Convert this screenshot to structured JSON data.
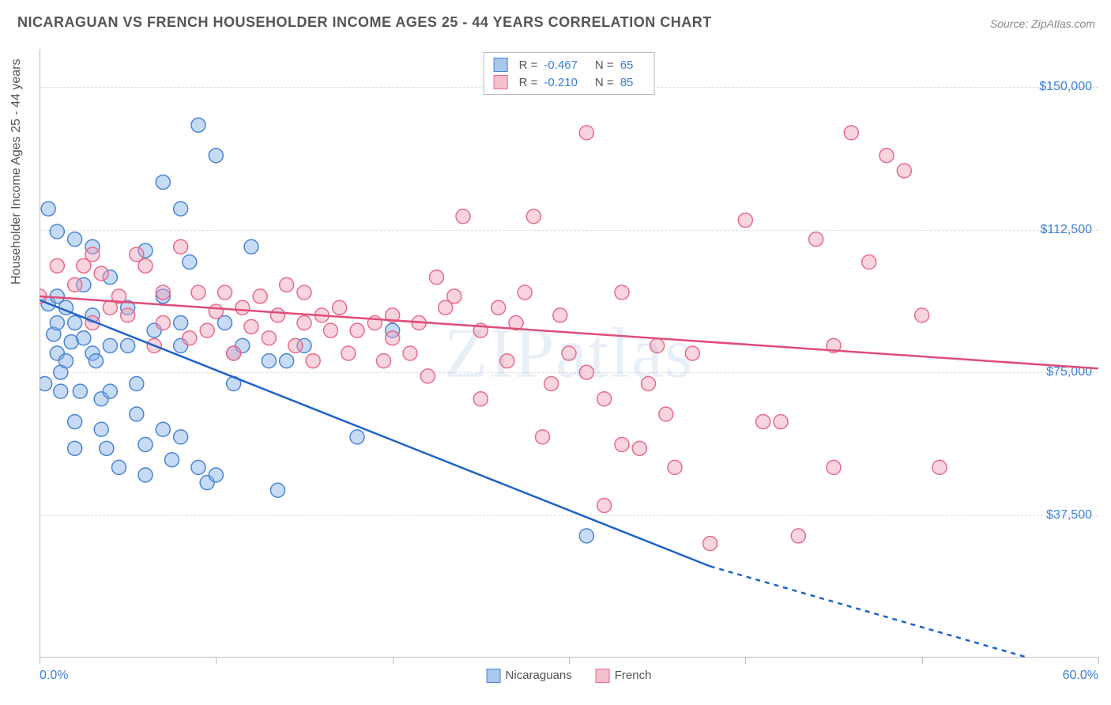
{
  "title": "NICARAGUAN VS FRENCH HOUSEHOLDER INCOME AGES 25 - 44 YEARS CORRELATION CHART",
  "source": "Source: ZipAtlas.com",
  "watermark": "ZIPatlas",
  "ylabel": "Householder Income Ages 25 - 44 years",
  "chart": {
    "type": "scatter",
    "plot_bg": "#ffffff",
    "grid_color": "#dddddd",
    "border_color": "#bbbbbb",
    "text_color": "#555555",
    "accent_color": "#3b7dd8",
    "xlim": [
      0,
      60
    ],
    "ylim": [
      0,
      160000
    ],
    "ytick_labels": [
      "$37,500",
      "$75,000",
      "$112,500",
      "$150,000"
    ],
    "ytick_values": [
      37500,
      75000,
      112500,
      150000
    ],
    "xtick_values": [
      0,
      10,
      20,
      30,
      40,
      50,
      60
    ],
    "xlabel_min": "0.0%",
    "xlabel_max": "60.0%",
    "marker_radius": 9,
    "marker_stroke_width": 1.5,
    "trend_width": 2.5
  },
  "legend_top": {
    "series": [
      {
        "swatch_fill": "#a8c8ec",
        "swatch_stroke": "#4a84d6",
        "R": "-0.467",
        "N": "65"
      },
      {
        "swatch_fill": "#f5c0cc",
        "swatch_stroke": "#e86a8a",
        "R": "-0.210",
        "N": "85"
      }
    ]
  },
  "legend_bottom": [
    {
      "label": "Nicaraguans",
      "fill": "#a8c8ec",
      "stroke": "#4a84d6"
    },
    {
      "label": "French",
      "fill": "#f5c0cc",
      "stroke": "#e86a8a"
    }
  ],
  "series": [
    {
      "name": "Nicaraguans",
      "color_fill": "rgba(130,175,230,0.45)",
      "color_stroke": "#4a84d6",
      "trend_color": "#1f63c7",
      "trend": {
        "x1": 0,
        "y1": 94000,
        "x2": 38,
        "y2": 24000,
        "dash_from_x": 38,
        "dash_to_x": 56,
        "dash_to_y": 0
      },
      "points": [
        [
          0.3,
          72000
        ],
        [
          0.5,
          93000
        ],
        [
          0.5,
          118000
        ],
        [
          0.8,
          85000
        ],
        [
          1,
          80000
        ],
        [
          1,
          88000
        ],
        [
          1,
          95000
        ],
        [
          1,
          112000
        ],
        [
          1.2,
          75000
        ],
        [
          1.2,
          70000
        ],
        [
          1.5,
          92000
        ],
        [
          1.5,
          78000
        ],
        [
          1.8,
          83000
        ],
        [
          2,
          110000
        ],
        [
          2,
          55000
        ],
        [
          2,
          62000
        ],
        [
          2,
          88000
        ],
        [
          2.3,
          70000
        ],
        [
          2.5,
          84000
        ],
        [
          2.5,
          98000
        ],
        [
          3,
          90000
        ],
        [
          3,
          80000
        ],
        [
          3,
          108000
        ],
        [
          3.2,
          78000
        ],
        [
          3.5,
          68000
        ],
        [
          3.5,
          60000
        ],
        [
          3.8,
          55000
        ],
        [
          4,
          100000
        ],
        [
          4,
          82000
        ],
        [
          4,
          70000
        ],
        [
          4.5,
          50000
        ],
        [
          5,
          92000
        ],
        [
          5,
          82000
        ],
        [
          5.5,
          64000
        ],
        [
          5.5,
          72000
        ],
        [
          6,
          56000
        ],
        [
          6,
          48000
        ],
        [
          6,
          107000
        ],
        [
          6.5,
          86000
        ],
        [
          7,
          95000
        ],
        [
          7,
          60000
        ],
        [
          7,
          125000
        ],
        [
          7.5,
          52000
        ],
        [
          8,
          82000
        ],
        [
          8,
          88000
        ],
        [
          8,
          118000
        ],
        [
          8,
          58000
        ],
        [
          8.5,
          104000
        ],
        [
          9,
          140000
        ],
        [
          9,
          50000
        ],
        [
          9.5,
          46000
        ],
        [
          10,
          132000
        ],
        [
          10,
          48000
        ],
        [
          10.5,
          88000
        ],
        [
          11,
          80000
        ],
        [
          11,
          72000
        ],
        [
          11.5,
          82000
        ],
        [
          12,
          108000
        ],
        [
          13,
          78000
        ],
        [
          13.5,
          44000
        ],
        [
          14,
          78000
        ],
        [
          15,
          82000
        ],
        [
          18,
          58000
        ],
        [
          20,
          86000
        ],
        [
          31,
          32000
        ]
      ]
    },
    {
      "name": "French",
      "color_fill": "rgba(240,160,185,0.45)",
      "color_stroke": "#e86a8a",
      "trend_color": "#e04d78",
      "trend": {
        "x1": 0,
        "y1": 95000,
        "x2": 60,
        "y2": 76000
      },
      "points": [
        [
          0,
          95000
        ],
        [
          1,
          103000
        ],
        [
          2,
          98000
        ],
        [
          2.5,
          103000
        ],
        [
          3,
          88000
        ],
        [
          3,
          106000
        ],
        [
          3.5,
          101000
        ],
        [
          4,
          92000
        ],
        [
          4.5,
          95000
        ],
        [
          5,
          90000
        ],
        [
          5.5,
          106000
        ],
        [
          6,
          103000
        ],
        [
          6.5,
          82000
        ],
        [
          7,
          88000
        ],
        [
          7,
          96000
        ],
        [
          8,
          108000
        ],
        [
          8.5,
          84000
        ],
        [
          9,
          96000
        ],
        [
          9.5,
          86000
        ],
        [
          10,
          91000
        ],
        [
          10.5,
          96000
        ],
        [
          11,
          80000
        ],
        [
          11.5,
          92000
        ],
        [
          12,
          87000
        ],
        [
          12.5,
          95000
        ],
        [
          13,
          84000
        ],
        [
          13.5,
          90000
        ],
        [
          14,
          98000
        ],
        [
          14.5,
          82000
        ],
        [
          15,
          88000
        ],
        [
          15,
          96000
        ],
        [
          15.5,
          78000
        ],
        [
          16,
          90000
        ],
        [
          16.5,
          86000
        ],
        [
          17,
          92000
        ],
        [
          17.5,
          80000
        ],
        [
          18,
          86000
        ],
        [
          19,
          88000
        ],
        [
          19.5,
          78000
        ],
        [
          20,
          90000
        ],
        [
          20,
          84000
        ],
        [
          21,
          80000
        ],
        [
          21.5,
          88000
        ],
        [
          22,
          74000
        ],
        [
          22.5,
          100000
        ],
        [
          23,
          92000
        ],
        [
          23.5,
          95000
        ],
        [
          24,
          116000
        ],
        [
          25,
          68000
        ],
        [
          25,
          86000
        ],
        [
          26,
          92000
        ],
        [
          26.5,
          78000
        ],
        [
          27,
          88000
        ],
        [
          27.5,
          96000
        ],
        [
          28,
          116000
        ],
        [
          28.5,
          58000
        ],
        [
          29,
          72000
        ],
        [
          29.5,
          90000
        ],
        [
          30,
          80000
        ],
        [
          31,
          75000
        ],
        [
          31,
          138000
        ],
        [
          32,
          40000
        ],
        [
          32,
          68000
        ],
        [
          33,
          56000
        ],
        [
          33,
          96000
        ],
        [
          34,
          55000
        ],
        [
          34.5,
          72000
        ],
        [
          35,
          82000
        ],
        [
          35.5,
          64000
        ],
        [
          36,
          50000
        ],
        [
          37,
          80000
        ],
        [
          38,
          30000
        ],
        [
          40,
          115000
        ],
        [
          41,
          62000
        ],
        [
          42,
          62000
        ],
        [
          43,
          32000
        ],
        [
          44,
          110000
        ],
        [
          45,
          50000
        ],
        [
          45,
          82000
        ],
        [
          46,
          138000
        ],
        [
          47,
          104000
        ],
        [
          48,
          132000
        ],
        [
          49,
          128000
        ],
        [
          50,
          90000
        ],
        [
          51,
          50000
        ]
      ]
    }
  ]
}
